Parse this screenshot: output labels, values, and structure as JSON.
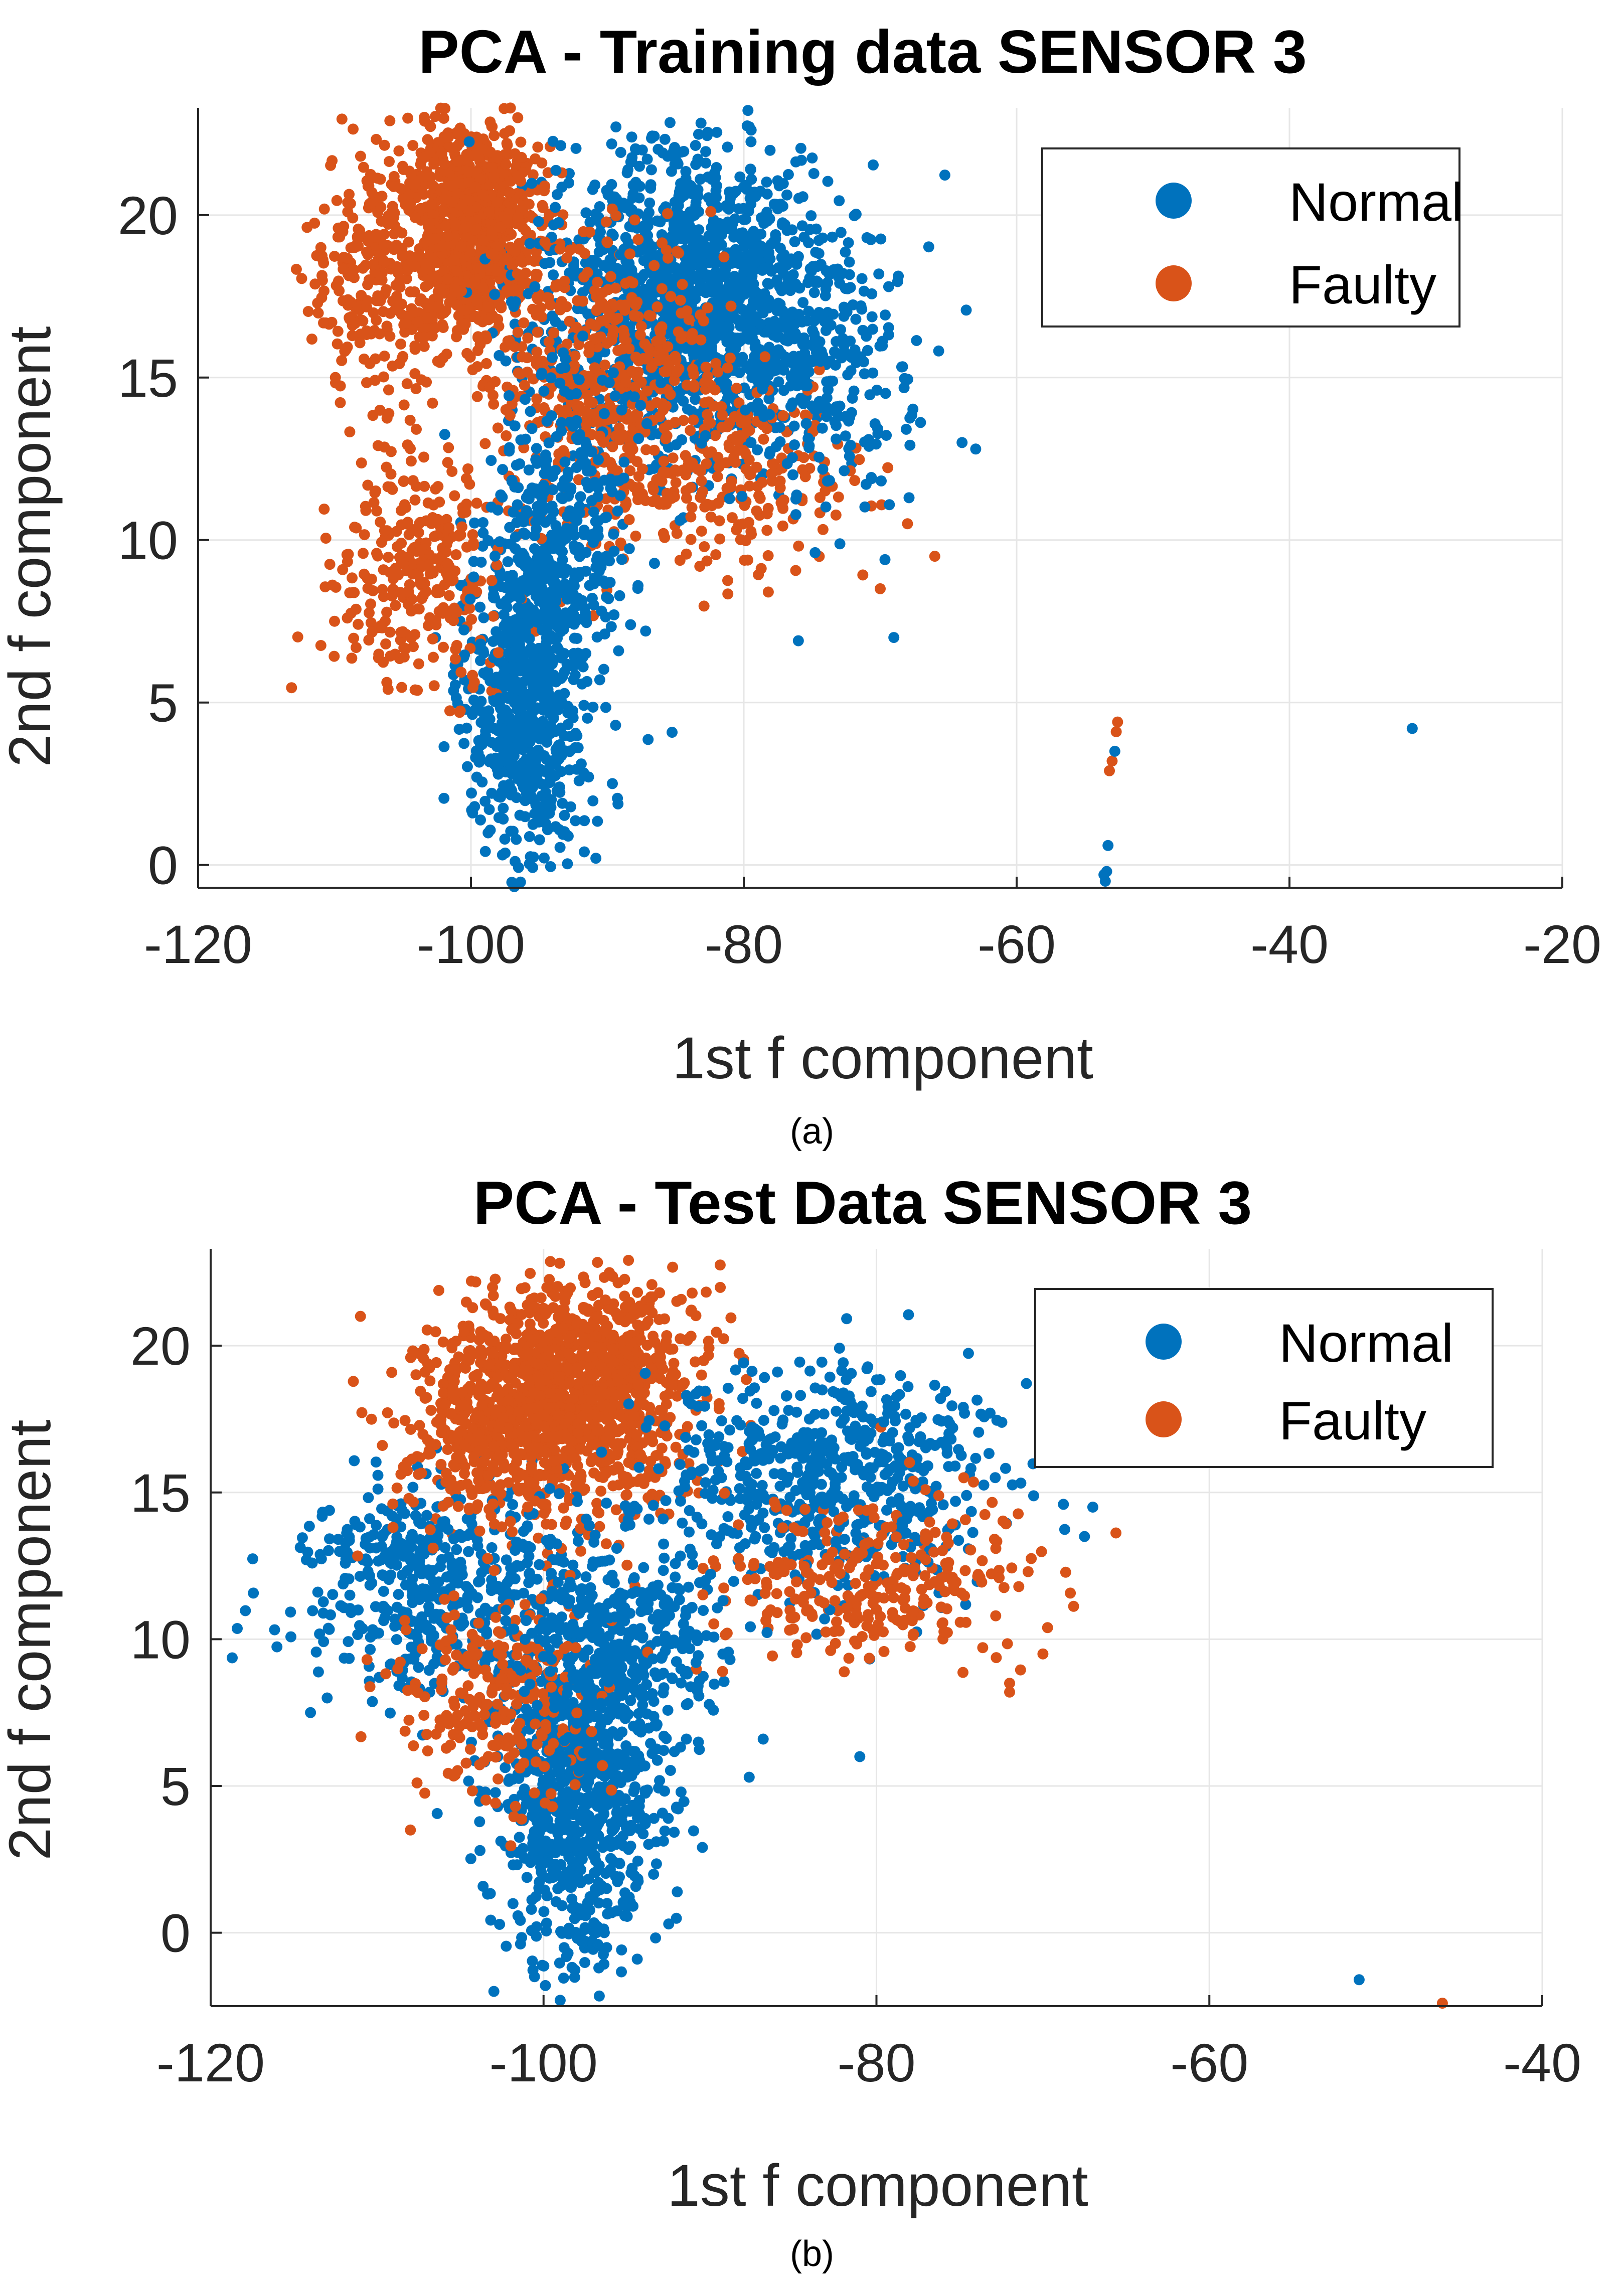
{
  "figure": {
    "panel_labels": [
      "(a)",
      "(b)"
    ],
    "colors": {
      "normal": "#0072BD",
      "faulty": "#D95319",
      "grid": "#e6e6e6",
      "axis": "#262626"
    }
  },
  "chart_data": [
    {
      "type": "scatter",
      "panel": "a",
      "title": "PCA - Training data SENSOR 3",
      "xlabel": "1st f component",
      "ylabel": "2nd f component",
      "xlim": [
        -120,
        -20
      ],
      "ylim": [
        -0.7,
        23.3
      ],
      "xticks": [
        -120,
        -100,
        -80,
        -60,
        -40,
        -20
      ],
      "yticks": [
        0,
        5,
        10,
        15,
        20
      ],
      "grid": true,
      "legend": {
        "position": "top-right",
        "entries": [
          "Normal",
          "Faulty"
        ]
      },
      "series": [
        {
          "name": "Normal",
          "color": "#0072BD",
          "clusters": [
            {
              "cx": -84,
              "cy": 17.5,
              "sx": 5.5,
              "sy": 2.3,
              "n": 1400
            },
            {
              "cx": -96,
              "cy": 5,
              "sx": 2.2,
              "sy": 2.8,
              "n": 700
            },
            {
              "cx": -93,
              "cy": 10,
              "sx": 2.8,
              "sy": 2.6,
              "n": 350
            },
            {
              "cx": -74,
              "cy": 15,
              "sx": 3.5,
              "sy": 2,
              "n": 200
            }
          ],
          "points": [
            [
              -53.5,
              -0.5
            ],
            [
              -53.3,
              0.6
            ],
            [
              -52.8,
              3.5
            ],
            [
              -31,
              4.2
            ],
            [
              -53.6,
              -0.3
            ],
            [
              -53.4,
              -0.2
            ],
            [
              -69,
              7
            ],
            [
              -76,
              6.9
            ],
            [
              -64,
              13
            ],
            [
              -63,
              12.8
            ]
          ]
        },
        {
          "name": "Faulty",
          "color": "#D95319",
          "clusters": [
            {
              "cx": -100,
              "cy": 19.5,
              "sx": 2.6,
              "sy": 1.8,
              "n": 900
            },
            {
              "cx": -107,
              "cy": 18,
              "sx": 2.5,
              "sy": 2,
              "n": 250
            },
            {
              "cx": -90,
              "cy": 14.5,
              "sx": 4,
              "sy": 2.3,
              "n": 500
            },
            {
              "cx": -104,
              "cy": 9,
              "sx": 3,
              "sy": 1.8,
              "n": 300
            },
            {
              "cx": -80,
              "cy": 12,
              "sx": 4,
              "sy": 1.5,
              "n": 200
            }
          ],
          "points": [
            [
              -52.6,
              4.4
            ],
            [
              -52.7,
              4.1
            ],
            [
              -53,
              3.2
            ],
            [
              -53.2,
              2.9
            ],
            [
              -66,
              9.5
            ],
            [
              -68,
              10.5
            ],
            [
              -70,
              8.5
            ],
            [
              -110,
              7.5
            ],
            [
              -111,
              19
            ],
            [
              -105,
              21.5
            ]
          ]
        }
      ]
    },
    {
      "type": "scatter",
      "panel": "b",
      "title": "PCA - Test Data SENSOR 3",
      "xlabel": "1st f component",
      "ylabel": "2nd f component",
      "xlim": [
        -120,
        -40
      ],
      "ylim": [
        -2.5,
        23.3
      ],
      "xticks": [
        -120,
        -100,
        -80,
        -60,
        -40
      ],
      "yticks": [
        0,
        5,
        10,
        15,
        20
      ],
      "grid": true,
      "legend": {
        "position": "top-right",
        "entries": [
          "Normal",
          "Faulty"
        ]
      },
      "series": [
        {
          "name": "Normal",
          "color": "#0072BD",
          "clusters": [
            {
              "cx": -98,
              "cy": 5,
              "sx": 2.5,
              "sy": 3,
              "n": 900
            },
            {
              "cx": -107,
              "cy": 12,
              "sx": 4,
              "sy": 1.8,
              "n": 450
            },
            {
              "cx": -82,
              "cy": 15.5,
              "sx": 5,
              "sy": 2,
              "n": 600
            },
            {
              "cx": -95,
              "cy": 10,
              "sx": 3,
              "sy": 2,
              "n": 350
            }
          ],
          "points": [
            [
              -51,
              -1.6
            ],
            [
              -67,
              14.5
            ],
            [
              -67.5,
              13.5
            ],
            [
              -81,
              6
            ],
            [
              -113,
              8
            ],
            [
              -114,
              7.5
            ],
            [
              -99,
              -2.3
            ]
          ]
        },
        {
          "name": "Faulty",
          "color": "#D95319",
          "clusters": [
            {
              "cx": -98,
              "cy": 18.5,
              "sx": 3.5,
              "sy": 2,
              "n": 1200
            },
            {
              "cx": -104,
              "cy": 17,
              "sx": 2.5,
              "sy": 1.5,
              "n": 250
            },
            {
              "cx": -103,
              "cy": 8,
              "sx": 3,
              "sy": 1.8,
              "n": 250
            },
            {
              "cx": -80,
              "cy": 12,
              "sx": 5,
              "sy": 1.5,
              "n": 300
            }
          ],
          "points": [
            [
              -46,
              -2.4
            ],
            [
              -72,
              8.2
            ],
            [
              -72,
              8.5
            ],
            [
              -70,
              9.5
            ],
            [
              -108,
              3.5
            ],
            [
              -111,
              21
            ]
          ]
        }
      ]
    }
  ]
}
